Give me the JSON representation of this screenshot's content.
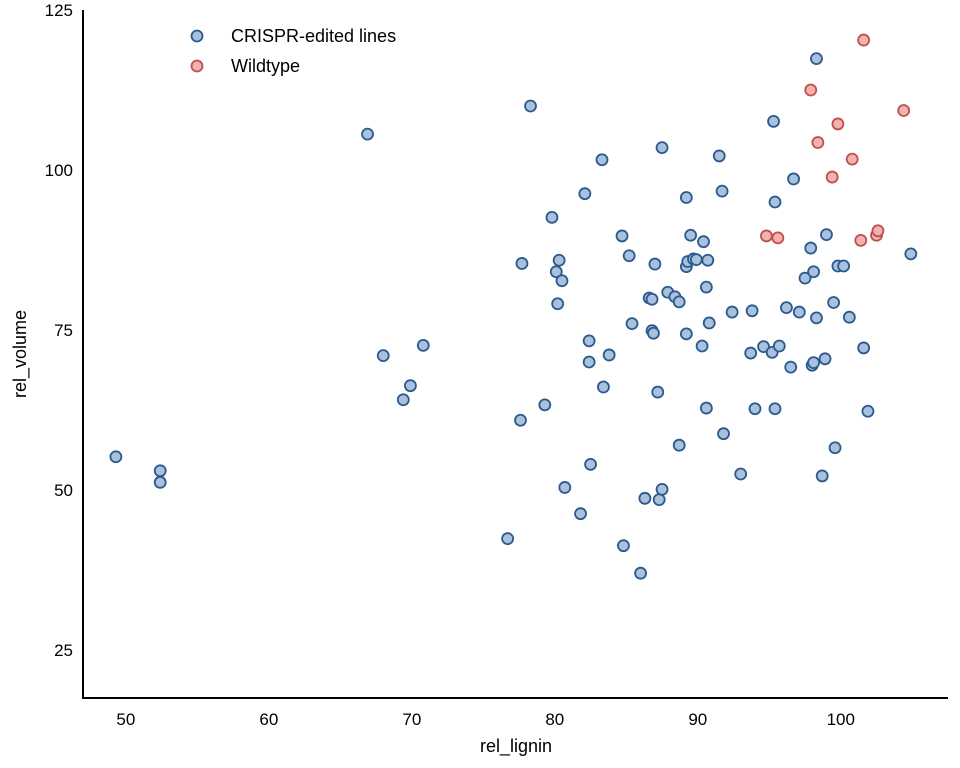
{
  "chart_data": {
    "type": "scatter",
    "xlabel": "rel_lignin",
    "ylabel": "rel_volume",
    "xlim": [
      47,
      107.5
    ],
    "ylim": [
      17.5,
      125
    ],
    "xticks": [
      50,
      60,
      70,
      80,
      90,
      100
    ],
    "yticks": [
      25,
      50,
      75,
      100,
      125
    ],
    "legend_position": "top-left",
    "grid": false,
    "series": [
      {
        "name": "CRISPR-edited lines",
        "color": "#2b5a8f",
        "fill": "#a9c1dc",
        "points": [
          [
            49.3,
            55.2
          ],
          [
            52.4,
            53.0
          ],
          [
            52.4,
            51.2
          ],
          [
            66.9,
            105.6
          ],
          [
            68.0,
            71.0
          ],
          [
            69.4,
            64.1
          ],
          [
            69.9,
            66.3
          ],
          [
            70.8,
            72.6
          ],
          [
            76.7,
            42.4
          ],
          [
            77.6,
            60.9
          ],
          [
            77.7,
            85.4
          ],
          [
            78.3,
            110.0
          ],
          [
            79.3,
            63.3
          ],
          [
            79.8,
            92.6
          ],
          [
            80.1,
            84.1
          ],
          [
            80.2,
            79.1
          ],
          [
            80.3,
            85.9
          ],
          [
            80.5,
            82.7
          ],
          [
            80.7,
            50.4
          ],
          [
            81.8,
            46.3
          ],
          [
            82.1,
            96.3
          ],
          [
            82.4,
            73.3
          ],
          [
            82.4,
            70.0
          ],
          [
            82.5,
            54.0
          ],
          [
            83.3,
            101.6
          ],
          [
            83.4,
            66.1
          ],
          [
            83.8,
            71.1
          ],
          [
            84.7,
            89.7
          ],
          [
            84.8,
            41.3
          ],
          [
            85.2,
            86.6
          ],
          [
            85.4,
            76.0
          ],
          [
            86.0,
            37.0
          ],
          [
            86.3,
            48.7
          ],
          [
            86.6,
            80.0
          ],
          [
            86.8,
            79.8
          ],
          [
            86.8,
            74.9
          ],
          [
            86.9,
            74.5
          ],
          [
            87.0,
            85.3
          ],
          [
            87.2,
            65.3
          ],
          [
            87.3,
            48.5
          ],
          [
            87.5,
            103.5
          ],
          [
            87.5,
            50.1
          ],
          [
            87.9,
            80.9
          ],
          [
            88.4,
            80.2
          ],
          [
            88.7,
            79.4
          ],
          [
            88.7,
            57.0
          ],
          [
            89.2,
            95.7
          ],
          [
            89.2,
            74.4
          ],
          [
            89.2,
            84.9
          ],
          [
            89.3,
            85.7
          ],
          [
            89.5,
            89.8
          ],
          [
            89.7,
            86.1
          ],
          [
            89.9,
            86.0
          ],
          [
            90.3,
            72.5
          ],
          [
            90.4,
            88.8
          ],
          [
            90.6,
            62.8
          ],
          [
            90.6,
            81.7
          ],
          [
            90.7,
            85.9
          ],
          [
            90.8,
            76.1
          ],
          [
            91.5,
            102.2
          ],
          [
            91.7,
            96.7
          ],
          [
            91.8,
            58.8
          ],
          [
            92.4,
            77.8
          ],
          [
            93.0,
            52.5
          ],
          [
            93.7,
            71.4
          ],
          [
            93.8,
            78.0
          ],
          [
            94.0,
            62.7
          ],
          [
            94.6,
            72.4
          ],
          [
            95.2,
            71.5
          ],
          [
            95.3,
            107.6
          ],
          [
            95.4,
            95.0
          ],
          [
            95.4,
            62.7
          ],
          [
            95.7,
            72.5
          ],
          [
            96.2,
            78.5
          ],
          [
            96.5,
            69.2
          ],
          [
            96.7,
            98.6
          ],
          [
            97.1,
            77.8
          ],
          [
            97.5,
            83.1
          ],
          [
            97.9,
            87.8
          ],
          [
            98.0,
            69.5
          ],
          [
            98.1,
            69.9
          ],
          [
            98.1,
            84.1
          ],
          [
            98.3,
            76.9
          ],
          [
            98.3,
            117.4
          ],
          [
            98.7,
            52.2
          ],
          [
            98.9,
            70.5
          ],
          [
            99.0,
            89.9
          ],
          [
            99.5,
            79.3
          ],
          [
            99.6,
            56.6
          ],
          [
            99.8,
            85.0
          ],
          [
            100.2,
            85.0
          ],
          [
            100.6,
            77.0
          ],
          [
            101.6,
            72.2
          ],
          [
            101.9,
            62.3
          ],
          [
            104.9,
            86.9
          ]
        ]
      },
      {
        "name": "Wildtype",
        "color": "#c0504d",
        "fill": "#f1b3b0",
        "points": [
          [
            94.8,
            89.7
          ],
          [
            95.6,
            89.4
          ],
          [
            97.9,
            112.5
          ],
          [
            98.4,
            104.3
          ],
          [
            99.4,
            98.9
          ],
          [
            99.8,
            107.2
          ],
          [
            100.8,
            101.7
          ],
          [
            101.4,
            89.0
          ],
          [
            101.6,
            120.3
          ],
          [
            102.5,
            89.8
          ],
          [
            102.6,
            90.5
          ],
          [
            104.4,
            109.3
          ]
        ]
      }
    ]
  }
}
